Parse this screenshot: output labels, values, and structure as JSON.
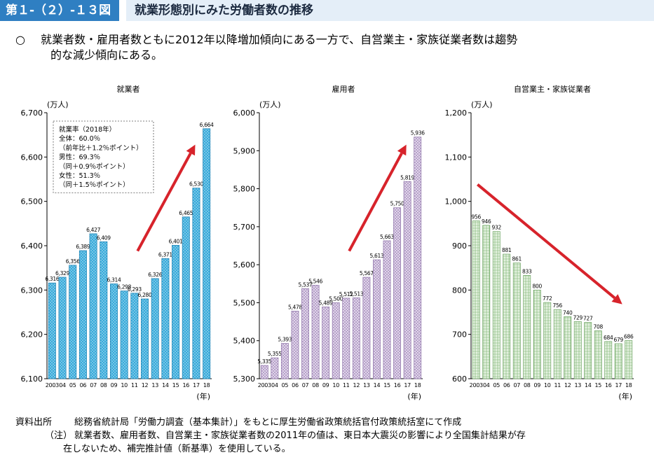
{
  "header": {
    "figure_no": "第１-（２）-１３図",
    "title": "就業形態別にみた労働者数の推移"
  },
  "lead": {
    "mark": "○",
    "line1": "就業者数・雇用者数ともに2012年以降増加傾向にある一方で、自営業主・家族従業者数は趨勢",
    "line2": "的な減少傾向にある。"
  },
  "colors": {
    "header_badge": "#2f7fc2",
    "header_band": "#e4eef8",
    "employed_bar": "#2ea6d8",
    "employee_bar": "#c9b5d8",
    "self_bar": "#c4e0bc",
    "arrow": "#d7232b"
  },
  "chart_data": [
    {
      "type": "bar",
      "title": "就業者",
      "unit": "(万人)",
      "x_unit": "(年)",
      "categories": [
        "2003",
        "04",
        "05",
        "06",
        "07",
        "08",
        "09",
        "10",
        "11",
        "12",
        "13",
        "14",
        "15",
        "16",
        "17",
        "18"
      ],
      "values": [
        6316,
        6329,
        6356,
        6389,
        6427,
        6409,
        6314,
        6298,
        6293,
        6280,
        6326,
        6371,
        6401,
        6465,
        6530,
        6664
      ],
      "value_labels": [
        "6,316",
        "6,329",
        "6,356",
        "6,389",
        "6,427",
        "6,409",
        "6,314",
        "6,298",
        "6,293",
        "6,280",
        "6,326",
        "6,371",
        "6,401",
        "6,465",
        "6,530",
        "6,664"
      ],
      "ylim": [
        6100,
        6700
      ],
      "yticks": [
        6100,
        6200,
        6300,
        6400,
        6500,
        6600,
        6700
      ],
      "ytick_labels": [
        "6,100",
        "6,200",
        "6,300",
        "6,400",
        "6,500",
        "6,600",
        "6,700"
      ],
      "trend": "up",
      "inset": {
        "lines": [
          "就業率（2018年）",
          "全体：60.0％",
          "（前年比＋1.2％ポイント）",
          "男性：69.3％",
          "（同＋0.9％ポイント）",
          "女性：51.3％",
          "（同＋1.5％ポイント）"
        ]
      }
    },
    {
      "type": "bar",
      "title": "雇用者",
      "unit": "(万人)",
      "x_unit": "(年)",
      "categories": [
        "2003",
        "04",
        "05",
        "06",
        "07",
        "08",
        "09",
        "10",
        "11",
        "12",
        "13",
        "14",
        "15",
        "16",
        "17",
        "18"
      ],
      "values": [
        5335,
        5355,
        5393,
        5478,
        5537,
        5546,
        5489,
        5500,
        5512,
        5513,
        5567,
        5613,
        5663,
        5750,
        5819,
        5936
      ],
      "value_labels": [
        "5,335",
        "5,355",
        "5,393",
        "5,478",
        "5,537",
        "5,546",
        "5,489",
        "5,500",
        "5,512",
        "5,513",
        "5,567",
        "5,613",
        "5,663",
        "5,750",
        "5,819",
        "5,936"
      ],
      "ylim": [
        5300,
        6000
      ],
      "yticks": [
        5300,
        5400,
        5500,
        5600,
        5700,
        5800,
        5900,
        6000
      ],
      "ytick_labels": [
        "5,300",
        "5,400",
        "5,500",
        "5,600",
        "5,700",
        "5,800",
        "5,900",
        "6,000"
      ],
      "trend": "up"
    },
    {
      "type": "bar",
      "title": "自営業主・家族従業者",
      "unit": "(万人)",
      "x_unit": "(年)",
      "categories": [
        "2003",
        "04",
        "05",
        "06",
        "07",
        "08",
        "09",
        "10",
        "11",
        "12",
        "13",
        "14",
        "15",
        "16",
        "17",
        "18"
      ],
      "values": [
        956,
        946,
        932,
        881,
        861,
        833,
        800,
        772,
        756,
        740,
        729,
        727,
        708,
        684,
        679,
        686
      ],
      "value_labels": [
        "956",
        "946",
        "932",
        "881",
        "861",
        "833",
        "800",
        "772",
        "756",
        "740",
        "729",
        "727",
        "708",
        "684",
        "679",
        "686"
      ],
      "ylim": [
        600,
        1200
      ],
      "yticks": [
        600,
        700,
        800,
        900,
        1000,
        1100,
        1200
      ],
      "ytick_labels": [
        "600",
        "700",
        "800",
        "900",
        "1,000",
        "1,100",
        "1,200"
      ],
      "trend": "down"
    }
  ],
  "notes": {
    "source_label": "資料出所",
    "source_text": "総務省統計局「労働力調査（基本集計）」をもとに厚生労働省政策統括官付政策統括室にて作成",
    "note_label": "（注）",
    "note_line1": "就業者数、雇用者数、自営業主・家族従業者数の2011年の値は、東日本大震災の影響により全国集計結果が存",
    "note_line2": "在しないため、補完推計値（新基準）を使用している。"
  }
}
